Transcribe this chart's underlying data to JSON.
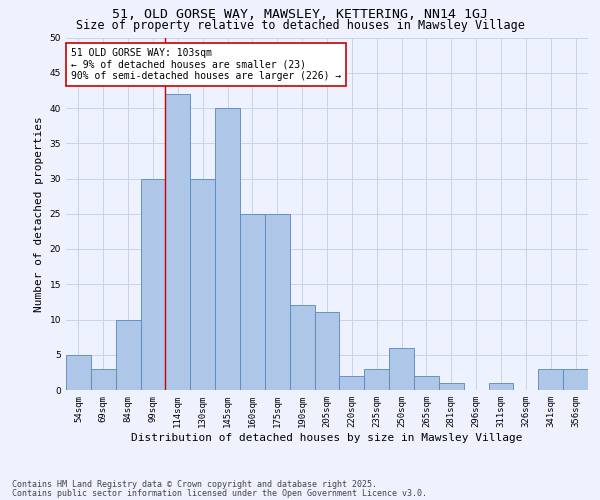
{
  "title1": "51, OLD GORSE WAY, MAWSLEY, KETTERING, NN14 1GJ",
  "title2": "Size of property relative to detached houses in Mawsley Village",
  "xlabel": "Distribution of detached houses by size in Mawsley Village",
  "ylabel": "Number of detached properties",
  "categories": [
    "54sqm",
    "69sqm",
    "84sqm",
    "99sqm",
    "114sqm",
    "130sqm",
    "145sqm",
    "160sqm",
    "175sqm",
    "190sqm",
    "205sqm",
    "220sqm",
    "235sqm",
    "250sqm",
    "265sqm",
    "281sqm",
    "296sqm",
    "311sqm",
    "326sqm",
    "341sqm",
    "356sqm"
  ],
  "values": [
    5,
    3,
    10,
    30,
    42,
    30,
    40,
    25,
    25,
    12,
    11,
    2,
    3,
    6,
    2,
    1,
    0,
    1,
    0,
    3,
    3
  ],
  "bar_color": "#aec6e8",
  "bar_edge_color": "#5588bb",
  "vline_color": "#cc0000",
  "annotation_text": "51 OLD GORSE WAY: 103sqm\n← 9% of detached houses are smaller (23)\n90% of semi-detached houses are larger (226) →",
  "annotation_box_color": "#ffffff",
  "annotation_box_edge": "#cc0000",
  "ylim": [
    0,
    50
  ],
  "yticks": [
    0,
    5,
    10,
    15,
    20,
    25,
    30,
    35,
    40,
    45,
    50
  ],
  "footer1": "Contains HM Land Registry data © Crown copyright and database right 2025.",
  "footer2": "Contains public sector information licensed under the Open Government Licence v3.0.",
  "background_color": "#eef2ff",
  "grid_color": "#c8d4e8",
  "title_fontsize": 9.5,
  "subtitle_fontsize": 8.5,
  "axis_label_fontsize": 8,
  "tick_fontsize": 6.5,
  "annotation_fontsize": 7,
  "footer_fontsize": 6
}
